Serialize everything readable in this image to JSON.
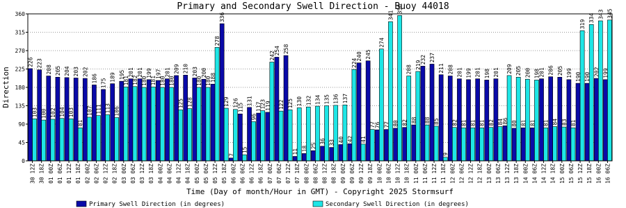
{
  "chart_data": {
    "type": "bar",
    "title": "Primary and Secondary Swell Direction - Buoy 44018",
    "x_label": "Time (Day of month/Hour in GMT) - Copyright 2025 Stormsurf",
    "y_label": "Direction",
    "categories": [
      "30 12Z",
      "30 18Z",
      "01 00Z",
      "01 06Z",
      "01 12Z",
      "01 18Z",
      "02 00Z",
      "02 06Z",
      "02 12Z",
      "02 18Z",
      "03 00Z",
      "03 06Z",
      "03 12Z",
      "03 18Z",
      "04 00Z",
      "04 06Z",
      "04 12Z",
      "04 18Z",
      "05 00Z",
      "05 06Z",
      "05 12Z",
      "05 18Z",
      "06 00Z",
      "06 06Z",
      "06 12Z",
      "06 18Z",
      "07 00Z",
      "07 06Z",
      "07 12Z",
      "07 18Z",
      "08 00Z",
      "08 06Z",
      "08 12Z",
      "08 18Z",
      "09 00Z",
      "09 06Z",
      "09 12Z",
      "09 18Z",
      "10 00Z",
      "10 06Z",
      "10 12Z",
      "10 18Z",
      "11 00Z",
      "11 06Z",
      "11 12Z",
      "11 18Z",
      "12 00Z",
      "12 06Z",
      "12 12Z",
      "12 18Z",
      "13 00Z",
      "13 06Z",
      "13 12Z",
      "13 18Z",
      "14 00Z",
      "14 06Z",
      "14 12Z",
      "14 18Z",
      "15 00Z",
      "15 06Z",
      "15 12Z",
      "15 18Z",
      "16 00Z",
      "16 06Z"
    ],
    "series": [
      {
        "name": "Primary Swell Direction (in degrees)",
        "color": "#0a0aa8",
        "values": [
          226,
          223,
          208,
          205,
          204,
          203,
          202,
          186,
          175,
          189,
          195,
          201,
          201,
          199,
          197,
          201,
          209,
          210,
          203,
          200,
          188,
          336,
          7,
          115,
          131,
          117,
          119,
          254,
          258,
          11,
          18,
          25,
          36,
          33,
          40,
          42,
          240,
          245,
          76,
          77,
          80,
          82,
          88,
          232,
          237,
          211,
          208,
          201,
          199,
          201,
          198,
          201,
          86,
          80,
          81,
          81,
          201,
          206,
          205,
          199,
          190,
          190,
          202,
          199
        ]
      },
      {
        "name": "Secondary Swell Direction (in degrees)",
        "color": "#1ee6e6",
        "values": [
          103,
          100,
          102,
          104,
          103,
          81,
          107,
          111,
          113,
          106,
          181,
          182,
          180,
          181,
          180,
          180,
          125,
          128,
          180,
          180,
          278,
          129,
          126,
          15,
          96,
          123,
          242,
          122,
          125,
          130,
          132,
          134,
          135,
          136,
          137,
          224,
          41,
          77,
          274,
          341,
          356,
          208,
          219,
          88,
          85,
          9,
          82,
          81,
          81,
          81,
          82,
          84,
          209,
          205,
          200,
          198,
          81,
          84,
          83,
          81,
          319,
          334,
          343,
          345
        ]
      }
    ],
    "ylim": [
      0,
      360
    ],
    "yticks": [
      0,
      45,
      90,
      135,
      180,
      225,
      270,
      315,
      360
    ],
    "grid": true,
    "legend": "bottom"
  }
}
